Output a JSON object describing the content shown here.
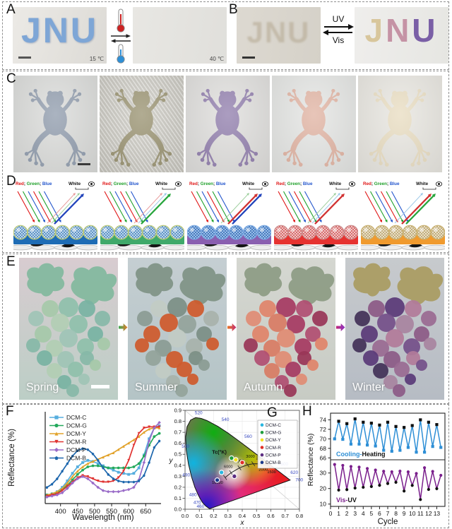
{
  "panels": {
    "A": {
      "label": "A",
      "word": "JNU",
      "cold_temp": "15 ℃",
      "hot_temp": "40 ℃"
    },
    "B": {
      "label": "B",
      "word": "JNU",
      "arrow_top": "UV",
      "arrow_bottom": "Vis",
      "letter_colors": [
        "#d8c69c",
        "#c593a5",
        "#7a5fa6"
      ]
    },
    "C": {
      "label": "C",
      "frogs": [
        {
          "name": "blue-gray frog",
          "fill": "#8e9aab",
          "bg": "#d9dad8",
          "texture": false,
          "scalebar": true
        },
        {
          "name": "olive frog",
          "fill": "#97906e",
          "bg": "#d1cfc7",
          "texture": true,
          "scalebar": false
        },
        {
          "name": "purple frog",
          "fill": "#8f7cab",
          "bg": "#dedddb",
          "texture": false,
          "scalebar": false
        },
        {
          "name": "salmon frog",
          "fill": "#e0b2a1",
          "bg": "#e3e4e2",
          "texture": false,
          "scalebar": false
        },
        {
          "name": "cream frog",
          "fill": "#e8dcc0",
          "bg": "#e7e5df",
          "texture": false,
          "scalebar": false
        }
      ]
    },
    "D": {
      "label": "D",
      "rgb_words": [
        "Red",
        "Green",
        "Blue"
      ],
      "rgb_colors": [
        "#e01616",
        "#1fa02a",
        "#2255cc"
      ],
      "white_label": "White",
      "units": [
        {
          "substrate": "#1e6cb5",
          "sphere_base": "#cfe3f2",
          "sphere_hatch": "#3a79b8",
          "sphere_edge": "#b9c87a",
          "strong": [
            "#2244bb"
          ],
          "weak": [
            "#e89a9a",
            "#9ecf9e"
          ]
        },
        {
          "substrate": "#3fa96a",
          "sphere_base": "#cfe3f2",
          "sphere_hatch": "#3a79b8",
          "sphere_edge": "#b9c87a",
          "strong": [
            "#27a53c"
          ],
          "weak": [
            "#e89a9a",
            "#9cc8e8"
          ]
        },
        {
          "substrate": "#8a5fb0",
          "sphere_base": "#a9cdf0",
          "sphere_hatch": "#2a5fae",
          "sphere_edge": "#7aa8e0",
          "strong": [
            "#d03030",
            "#2244bb"
          ],
          "weak": [
            "#9ecf9e"
          ]
        },
        {
          "substrate": "#e63230",
          "sphere_base": "#f6d7d7",
          "sphere_hatch": "#cc4848",
          "sphere_edge": "#cc8a8a",
          "strong": [
            "#d03030"
          ],
          "weak": [
            "#9ecf9e",
            "#9cc8e8"
          ]
        },
        {
          "substrate": "#f09a2e",
          "sphere_base": "#f2e9d6",
          "sphere_hatch": "#b09a60",
          "sphere_edge": "#c8b070",
          "strong": [
            "#d03030",
            "#27a53c"
          ],
          "weak": [
            "#9cc8e8"
          ]
        }
      ]
    },
    "E": {
      "label": "E",
      "seasons": [
        {
          "name": "Spring",
          "leaf": "#7fb89c",
          "bg_top": "#d8ccd0",
          "bg_bottom": "#bccec6",
          "scalebar": true,
          "grapes": [
            "#8fc0ab",
            "#a6c8a9",
            "#79b3a2",
            "#9fc4b6",
            "#86b8a8",
            "#b2cdb4"
          ]
        },
        {
          "name": "Summer",
          "leaf": "#7d9183",
          "bg_top": "#c5ced2",
          "bg_bottom": "#b4c4c6",
          "scalebar": false,
          "grapes": [
            "#7c8f85",
            "#c2cbc4",
            "#cf5a2c",
            "#8b9c93",
            "#a8b3ab",
            "#cf5a2c",
            "#93a49b",
            "#cf5a2c"
          ]
        },
        {
          "name": "Autumn",
          "leaf": "#8b9a82",
          "bg_top": "#d5d7d1",
          "bg_bottom": "#c7cbc4",
          "scalebar": false,
          "grapes": [
            "#a63a62",
            "#e0846a",
            "#b04f72",
            "#e08c74",
            "#993657",
            "#d87c64"
          ]
        },
        {
          "name": "Winter",
          "leaf": "#a89a5e",
          "bg_top": "#c7cacd",
          "bg_bottom": "#b6bcc4",
          "scalebar": false,
          "grapes": [
            "#5a3a78",
            "#8c5a86",
            "#b27b9a",
            "#433158",
            "#9a6b92",
            "#74508a",
            "#a884a0"
          ]
        }
      ],
      "arrows": [
        [
          "#3faa55",
          "#e87828"
        ],
        [
          "#e87828",
          "#c02878"
        ],
        [
          "#c02878",
          "#8a35c8"
        ]
      ]
    },
    "F": {
      "label": "F"
    },
    "G": {
      "label": "G"
    },
    "H": {
      "label": "H"
    }
  },
  "chart_data": [
    {
      "id": "F",
      "type": "line",
      "xlabel": "Wavelength (nm)",
      "ylabel": "Reflectance (%)",
      "xlim": [
        355,
        695
      ],
      "ylim": [
        0,
        85
      ],
      "xticks": [
        400,
        450,
        500,
        550,
        600,
        650
      ],
      "x": [
        360,
        375,
        390,
        405,
        420,
        435,
        450,
        465,
        480,
        495,
        510,
        525,
        540,
        555,
        570,
        585,
        600,
        615,
        630,
        645,
        660,
        675,
        690
      ],
      "series": [
        {
          "name": "DCM-C",
          "color": "#56aede",
          "marker": "sq",
          "values": [
            8,
            9,
            11,
            15,
            21,
            28,
            34,
            38,
            40,
            39,
            37,
            35,
            33,
            31,
            29,
            28,
            27,
            28,
            33,
            45,
            60,
            70,
            72
          ]
        },
        {
          "name": "DCM-G",
          "color": "#23a95c",
          "marker": "ci",
          "values": [
            8,
            9,
            10,
            13,
            17,
            22,
            27,
            31,
            34,
            35,
            35,
            34,
            33,
            33,
            33,
            33,
            33,
            34,
            37,
            44,
            54,
            62,
            65
          ]
        },
        {
          "name": "DCM-Y",
          "color": "#e2a32c",
          "marker": "tu",
          "values": [
            8,
            9,
            11,
            14,
            19,
            25,
            30,
            34,
            37,
            39,
            41,
            43,
            45,
            47,
            50,
            53,
            56,
            59,
            62,
            66,
            69,
            70,
            70
          ]
        },
        {
          "name": "DCM-R",
          "color": "#e03230",
          "marker": "td",
          "values": [
            7,
            8,
            9,
            12,
            16,
            20,
            24,
            26,
            25,
            23,
            21,
            20,
            20,
            21,
            24,
            30,
            40,
            54,
            65,
            70,
            71,
            71,
            71
          ]
        },
        {
          "name": "DCM-P",
          "color": "#9a6cc8",
          "marker": "di",
          "values": [
            6,
            7,
            8,
            10,
            14,
            19,
            23,
            25,
            23,
            19,
            15,
            12,
            11,
            11,
            11,
            12,
            13,
            15,
            22,
            38,
            58,
            70,
            75
          ]
        },
        {
          "name": "DCM-B",
          "color": "#1c66ad",
          "marker": "pe",
          "values": [
            15,
            18,
            23,
            30,
            37,
            44,
            49,
            51,
            50,
            46,
            40,
            33,
            27,
            23,
            21,
            20,
            20,
            20,
            21,
            26,
            38,
            52,
            58
          ]
        }
      ],
      "legend_position": "top-left"
    },
    {
      "id": "G",
      "type": "scatter",
      "xlabel": "x",
      "ylabel": "y",
      "xlim": [
        0,
        0.8
      ],
      "ylim": [
        0,
        0.9
      ],
      "xticks": [
        0,
        0.1,
        0.2,
        0.3,
        0.4,
        0.5,
        0.6,
        0.7,
        0.8
      ],
      "yticks": [
        0,
        0.1,
        0.2,
        0.3,
        0.4,
        0.5,
        0.6,
        0.7,
        0.8,
        0.9
      ],
      "cct_label": "Tc(°K)",
      "cct_ticks": [
        "10000",
        "6000",
        "4000",
        "3000",
        "2500",
        "2000",
        "1500"
      ],
      "wavelength_labels": [
        "460",
        "470",
        "480",
        "490",
        "500",
        "520",
        "540",
        "560",
        "580",
        "600",
        "620",
        "700"
      ],
      "legend": [
        {
          "name": "DCM-C",
          "color": "#29b6e0"
        },
        {
          "name": "DCM-G",
          "color": "#1f9e3c"
        },
        {
          "name": "DCM-Y",
          "color": "#f2e022"
        },
        {
          "name": "DCM-R",
          "color": "#e03028"
        },
        {
          "name": "DCM-P",
          "color": "#5c2d82"
        },
        {
          "name": "DCM-B",
          "color": "#1a3a8c"
        }
      ],
      "points": [
        {
          "name": "DCM-C",
          "x": 0.255,
          "y": 0.335,
          "color": "#29b6e0"
        },
        {
          "name": "DCM-G",
          "x": 0.325,
          "y": 0.465,
          "color": "#1f9e3c"
        },
        {
          "name": "DCM-Y",
          "x": 0.355,
          "y": 0.45,
          "color": "#f2e022"
        },
        {
          "name": "DCM-R",
          "x": 0.4,
          "y": 0.425,
          "color": "#e03028"
        },
        {
          "name": "DCM-P",
          "x": 0.345,
          "y": 0.3,
          "color": "#5c2d82"
        },
        {
          "name": "DCM-B",
          "x": 0.225,
          "y": 0.265,
          "color": "#1a3a8c"
        }
      ]
    },
    {
      "id": "H",
      "type": "line",
      "xlabel": "Cycle",
      "ylabel": "Reflectance (%)",
      "xlim": [
        0,
        14
      ],
      "xticks": [
        0,
        1,
        2,
        3,
        4,
        5,
        6,
        7,
        8,
        9,
        10,
        11,
        12,
        13
      ],
      "x": [
        0.5,
        1,
        1.5,
        2,
        2.5,
        3,
        3.5,
        4,
        4.5,
        5,
        5.5,
        6,
        6.5,
        7,
        7.5,
        8,
        8.5,
        9,
        9.5,
        10,
        10.5,
        11,
        11.5,
        12,
        12.5,
        13,
        13.5
      ],
      "subplots": [
        {
          "label_a": "Cooling-",
          "label_b": "Heating",
          "label_a_color": "#2e8fd6",
          "line_color": "#2e8fd6",
          "ylim": [
            65.6,
            75.4
          ],
          "yticks": [
            66,
            68,
            70,
            72,
            74
          ],
          "marker": "sq",
          "values": [
            70.0,
            73.7,
            69.9,
            73.2,
            68.9,
            74.2,
            68.9,
            73.5,
            68.7,
            73.3,
            68.5,
            72.9,
            67.6,
            73.5,
            67.4,
            72.6,
            67.6,
            72.4,
            68.2,
            72.8,
            67.2,
            74.0,
            67.2,
            73.5,
            68.4,
            73.0,
            68.2
          ]
        },
        {
          "label_a": "Vis-",
          "label_b": "UV",
          "label_a_color": "#7a1f8c",
          "line_color": "#7a1f8c",
          "ylim": [
            8.5,
            38.5
          ],
          "yticks": [
            10,
            20,
            30
          ],
          "marker": "ci",
          "values": [
            35.5,
            19.0,
            34.9,
            19.3,
            34.2,
            20.3,
            33.8,
            20.8,
            32.9,
            21.3,
            31.9,
            22.1,
            31.1,
            23.2,
            30.8,
            24.0,
            31.2,
            18.4,
            30.7,
            22.0,
            29.7,
            12.9,
            33.4,
            19.4,
            31.0,
            19.9,
            28.5
          ]
        }
      ]
    }
  ]
}
